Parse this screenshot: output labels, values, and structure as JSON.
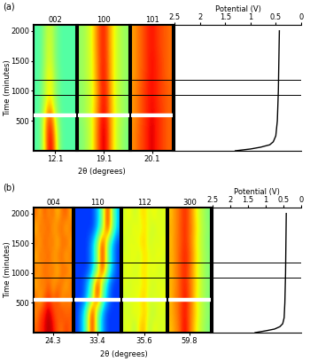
{
  "chart_data": [
    {
      "type": "heatmap",
      "title": "(a)",
      "ylabel": "Time (minutes)",
      "xlabel": "2θ (degrees)",
      "ylim": [
        0,
        2100
      ],
      "yticks": [
        500,
        1000,
        1500,
        2000
      ],
      "color_range": [
        0,
        1
      ],
      "marker_lines": [
        930,
        1180
      ],
      "gap_band": 600,
      "strips": [
        {
          "name": "002",
          "xlim": [
            11.5,
            12.7
          ],
          "xticks": [
            12.1
          ],
          "cells": [
            [
              0.45,
              0.48,
              0.7,
              0.95,
              0.75,
              0.5,
              0.45,
              0.45,
              0.45
            ],
            [
              0.45,
              0.48,
              0.72,
              0.92,
              0.7,
              0.5,
              0.45,
              0.45,
              0.45
            ],
            [
              0.45,
              0.48,
              0.68,
              0.85,
              0.62,
              0.48,
              0.45,
              0.45,
              0.45
            ],
            [
              0.45,
              0.47,
              0.6,
              0.7,
              0.55,
              0.47,
              0.45,
              0.45,
              0.45
            ],
            [
              0.45,
              0.47,
              0.58,
              0.66,
              0.54,
              0.47,
              0.45,
              0.45,
              0.45
            ],
            [
              0.45,
              0.47,
              0.58,
              0.66,
              0.54,
              0.47,
              0.45,
              0.45,
              0.45
            ],
            [
              0.45,
              0.46,
              0.56,
              0.62,
              0.52,
              0.46,
              0.45,
              0.45,
              0.45
            ],
            [
              0.45,
              0.46,
              0.56,
              0.62,
              0.52,
              0.46,
              0.45,
              0.45,
              0.45
            ],
            [
              0.45,
              0.46,
              0.55,
              0.6,
              0.52,
              0.46,
              0.45,
              0.45,
              0.45
            ]
          ]
        },
        {
          "name": "100",
          "xlim": [
            18.6,
            19.6
          ],
          "xticks": [
            19.1
          ],
          "cells": [
            [
              0.5,
              0.55,
              0.62,
              0.8,
              0.95,
              0.8,
              0.62,
              0.55,
              0.5
            ],
            [
              0.5,
              0.55,
              0.62,
              0.8,
              0.95,
              0.8,
              0.62,
              0.55,
              0.5
            ],
            [
              0.52,
              0.56,
              0.63,
              0.78,
              0.93,
              0.78,
              0.63,
              0.56,
              0.52
            ],
            [
              0.52,
              0.56,
              0.62,
              0.76,
              0.92,
              0.78,
              0.62,
              0.56,
              0.52
            ],
            [
              0.52,
              0.56,
              0.62,
              0.76,
              0.91,
              0.77,
              0.62,
              0.56,
              0.52
            ],
            [
              0.53,
              0.57,
              0.63,
              0.78,
              0.91,
              0.76,
              0.62,
              0.56,
              0.53
            ],
            [
              0.53,
              0.57,
              0.63,
              0.78,
              0.9,
              0.76,
              0.62,
              0.56,
              0.53
            ],
            [
              0.53,
              0.57,
              0.64,
              0.79,
              0.9,
              0.75,
              0.62,
              0.56,
              0.53
            ],
            [
              0.53,
              0.57,
              0.64,
              0.79,
              0.9,
              0.75,
              0.62,
              0.56,
              0.53
            ]
          ]
        },
        {
          "name": "101",
          "xlim": [
            19.7,
            20.5
          ],
          "xticks": [
            20.1
          ],
          "cells": [
            [
              0.76,
              0.8,
              0.84,
              0.88,
              0.92,
              0.88,
              0.85,
              0.82,
              0.8
            ],
            [
              0.76,
              0.8,
              0.84,
              0.88,
              0.92,
              0.88,
              0.85,
              0.82,
              0.8
            ],
            [
              0.75,
              0.79,
              0.83,
              0.87,
              0.91,
              0.88,
              0.85,
              0.82,
              0.8
            ],
            [
              0.75,
              0.79,
              0.83,
              0.87,
              0.9,
              0.87,
              0.84,
              0.82,
              0.8
            ],
            [
              0.75,
              0.79,
              0.83,
              0.87,
              0.9,
              0.87,
              0.84,
              0.82,
              0.8
            ],
            [
              0.74,
              0.78,
              0.82,
              0.86,
              0.9,
              0.87,
              0.84,
              0.81,
              0.79
            ],
            [
              0.74,
              0.78,
              0.82,
              0.86,
              0.9,
              0.87,
              0.84,
              0.81,
              0.79
            ],
            [
              0.74,
              0.78,
              0.82,
              0.86,
              0.89,
              0.86,
              0.83,
              0.81,
              0.79
            ],
            [
              0.74,
              0.78,
              0.82,
              0.86,
              0.89,
              0.86,
              0.83,
              0.81,
              0.79
            ]
          ]
        }
      ],
      "potential": {
        "xlabel": "Potential (V)",
        "xlim": [
          2.5,
          0
        ],
        "xticks": [
          2.5,
          2,
          1.5,
          1,
          0.5,
          0
        ],
        "x": [
          1.3,
          1.0,
          0.8,
          0.62,
          0.55,
          0.5,
          0.47,
          0.45,
          0.44,
          0.43
        ],
        "y": [
          0,
          30,
          60,
          100,
          150,
          250,
          500,
          1000,
          1500,
          2000
        ],
        "color": "#000000"
      }
    },
    {
      "type": "heatmap",
      "title": "(b)",
      "ylabel": "Time (minutes)",
      "xlabel": "2θ (degrees)",
      "ylim": [
        0,
        2100
      ],
      "yticks": [
        500,
        1000,
        1500,
        2000
      ],
      "color_range": [
        0,
        1
      ],
      "marker_lines": [
        930,
        1180
      ],
      "gap_band": 560,
      "strips": [
        {
          "name": "004",
          "xlim": [
            23.8,
            24.8
          ],
          "xticks": [
            24.3
          ],
          "cells": [
            [
              0.8,
              0.85,
              0.9,
              0.97,
              0.9,
              0.82,
              0.78,
              0.85,
              0.8
            ],
            [
              0.75,
              0.82,
              0.88,
              0.95,
              0.85,
              0.8,
              0.85,
              0.78,
              0.82
            ],
            [
              0.82,
              0.7,
              0.8,
              0.85,
              0.78,
              0.85,
              0.72,
              0.8,
              0.75
            ],
            [
              0.7,
              0.8,
              0.75,
              0.82,
              0.72,
              0.78,
              0.8,
              0.7,
              0.8
            ],
            [
              0.8,
              0.72,
              0.82,
              0.75,
              0.8,
              0.7,
              0.78,
              0.82,
              0.72
            ],
            [
              0.7,
              0.8,
              0.75,
              0.82,
              0.72,
              0.78,
              0.8,
              0.7,
              0.8
            ],
            [
              0.8,
              0.72,
              0.82,
              0.75,
              0.8,
              0.7,
              0.78,
              0.82,
              0.72
            ],
            [
              0.7,
              0.8,
              0.75,
              0.82,
              0.72,
              0.78,
              0.8,
              0.7,
              0.8
            ],
            [
              0.8,
              0.72,
              0.82,
              0.75,
              0.8,
              0.7,
              0.78,
              0.82,
              0.72
            ]
          ]
        },
        {
          "name": "110",
          "xlim": [
            32.9,
            33.9
          ],
          "xticks": [
            33.4
          ],
          "cells": [
            [
              0.18,
              0.3,
              0.5,
              0.92,
              0.5,
              0.3,
              0.18,
              0.18,
              0.18
            ],
            [
              0.18,
              0.3,
              0.5,
              0.92,
              0.5,
              0.3,
              0.18,
              0.18,
              0.18
            ],
            [
              0.18,
              0.18,
              0.3,
              0.5,
              0.92,
              0.5,
              0.3,
              0.18,
              0.18
            ],
            [
              0.18,
              0.18,
              0.3,
              0.5,
              0.92,
              0.5,
              0.3,
              0.18,
              0.18
            ],
            [
              0.18,
              0.18,
              0.18,
              0.3,
              0.5,
              0.92,
              0.5,
              0.3,
              0.18
            ],
            [
              0.18,
              0.18,
              0.18,
              0.3,
              0.5,
              0.92,
              0.5,
              0.3,
              0.18
            ],
            [
              0.18,
              0.18,
              0.18,
              0.3,
              0.5,
              0.92,
              0.5,
              0.3,
              0.18
            ],
            [
              0.18,
              0.18,
              0.18,
              0.18,
              0.3,
              0.5,
              0.92,
              0.5,
              0.3
            ],
            [
              0.18,
              0.18,
              0.18,
              0.18,
              0.3,
              0.5,
              0.92,
              0.5,
              0.3
            ]
          ]
        },
        {
          "name": "112",
          "xlim": [
            35.1,
            36.1
          ],
          "xticks": [
            35.6
          ],
          "cells": [
            [
              0.6,
              0.65,
              0.55,
              0.68,
              0.72,
              0.55,
              0.65,
              0.6,
              0.62
            ],
            [
              0.62,
              0.58,
              0.66,
              0.6,
              0.7,
              0.62,
              0.56,
              0.64,
              0.6
            ],
            [
              0.58,
              0.64,
              0.6,
              0.66,
              0.7,
              0.58,
              0.64,
              0.6,
              0.66
            ],
            [
              0.64,
              0.58,
              0.65,
              0.6,
              0.68,
              0.63,
              0.58,
              0.65,
              0.6
            ],
            [
              0.6,
              0.66,
              0.58,
              0.64,
              0.69,
              0.6,
              0.66,
              0.58,
              0.63
            ],
            [
              0.63,
              0.6,
              0.66,
              0.58,
              0.68,
              0.64,
              0.6,
              0.66,
              0.6
            ],
            [
              0.58,
              0.65,
              0.6,
              0.66,
              0.7,
              0.58,
              0.64,
              0.6,
              0.65
            ],
            [
              0.64,
              0.58,
              0.66,
              0.6,
              0.68,
              0.62,
              0.58,
              0.65,
              0.6
            ],
            [
              0.6,
              0.66,
              0.58,
              0.64,
              0.69,
              0.6,
              0.66,
              0.6,
              0.63
            ]
          ]
        },
        {
          "name": "300",
          "xlim": [
            59.3,
            60.3
          ],
          "xticks": [
            59.8
          ],
          "cells": [
            [
              0.7,
              0.75,
              0.8,
              0.92,
              0.8,
              0.7,
              0.6,
              0.55,
              0.5
            ],
            [
              0.72,
              0.76,
              0.82,
              0.9,
              0.8,
              0.72,
              0.62,
              0.56,
              0.52
            ],
            [
              0.7,
              0.78,
              0.8,
              0.9,
              0.82,
              0.7,
              0.6,
              0.56,
              0.5
            ],
            [
              0.72,
              0.75,
              0.82,
              0.88,
              0.8,
              0.72,
              0.62,
              0.55,
              0.52
            ],
            [
              0.7,
              0.77,
              0.8,
              0.88,
              0.8,
              0.7,
              0.6,
              0.56,
              0.5
            ],
            [
              0.72,
              0.75,
              0.82,
              0.88,
              0.82,
              0.72,
              0.62,
              0.55,
              0.52
            ],
            [
              0.7,
              0.77,
              0.8,
              0.87,
              0.8,
              0.7,
              0.6,
              0.56,
              0.5
            ],
            [
              0.72,
              0.75,
              0.81,
              0.87,
              0.8,
              0.72,
              0.62,
              0.55,
              0.52
            ],
            [
              0.7,
              0.76,
              0.8,
              0.87,
              0.8,
              0.7,
              0.6,
              0.56,
              0.5
            ]
          ]
        }
      ],
      "potential": {
        "xlabel": "Potential (V)",
        "xlim": [
          2.5,
          0
        ],
        "xticks": [
          2.5,
          2,
          1.5,
          1,
          0.5,
          0
        ],
        "x": [
          1.3,
          1.0,
          0.75,
          0.6,
          0.52,
          0.48,
          0.46,
          0.44,
          0.43,
          0.42
        ],
        "y": [
          0,
          30,
          60,
          100,
          150,
          250,
          500,
          1000,
          1500,
          2000
        ],
        "color": "#000000"
      }
    }
  ]
}
